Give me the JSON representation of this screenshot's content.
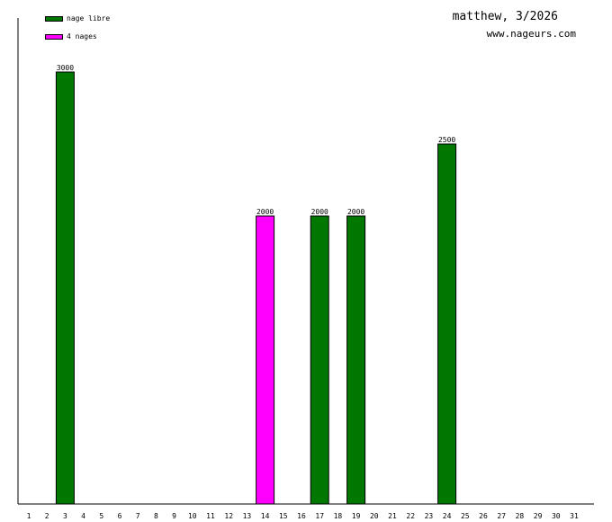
{
  "header": {
    "title": "matthew, 3/2026",
    "site": "www.nageurs.com"
  },
  "colors": {
    "nage_libre": "#007700",
    "4_nages": "#ff00ff"
  },
  "chart_data": {
    "type": "bar",
    "title": "matthew, 3/2026",
    "xlabel": "",
    "ylabel": "",
    "categories": [
      "1",
      "2",
      "3",
      "4",
      "5",
      "6",
      "7",
      "8",
      "9",
      "10",
      "11",
      "12",
      "13",
      "14",
      "15",
      "16",
      "17",
      "18",
      "19",
      "20",
      "21",
      "22",
      "23",
      "24",
      "25",
      "26",
      "27",
      "28",
      "29",
      "30",
      "31"
    ],
    "ylim": [
      0,
      3300
    ],
    "legend_position": "top-left",
    "series": [
      {
        "name": "nage libre",
        "color": "#007700",
        "values": [
          0,
          0,
          3000,
          0,
          0,
          0,
          0,
          0,
          0,
          0,
          0,
          0,
          0,
          0,
          0,
          0,
          2000,
          0,
          2000,
          0,
          0,
          0,
          0,
          2500,
          0,
          0,
          0,
          0,
          0,
          0,
          0
        ]
      },
      {
        "name": "4 nages",
        "color": "#ff00ff",
        "values": [
          0,
          0,
          0,
          0,
          0,
          0,
          0,
          0,
          0,
          0,
          0,
          0,
          0,
          2000,
          0,
          0,
          0,
          0,
          0,
          0,
          0,
          0,
          0,
          0,
          0,
          0,
          0,
          0,
          0,
          0,
          0
        ]
      }
    ]
  }
}
